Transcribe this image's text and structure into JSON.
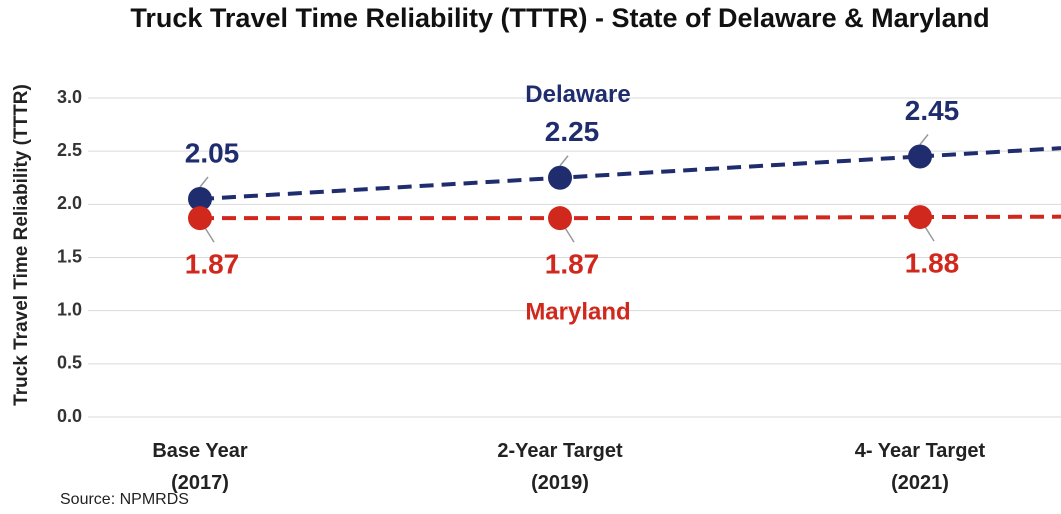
{
  "chart_data": {
    "type": "line",
    "title": "Truck Travel Time Reliability (TTTR) - State of Delaware & Maryland",
    "y_label": "Truck Travel Time Reliability (TTTR)",
    "source": "Source: NPMRDS",
    "categories": [
      "Base Year (2017)",
      "2-Year Target (2019)",
      "4- Year Target (2021)"
    ],
    "series": [
      {
        "name": "Delaware",
        "color": "#1f2d6e",
        "values": [
          2.05,
          2.25,
          2.45
        ],
        "label_position": "above"
      },
      {
        "name": "Maryland",
        "color": "#d0281c",
        "values": [
          1.87,
          1.87,
          1.88
        ],
        "label_position": "below"
      }
    ],
    "ylim": [
      0,
      3
    ],
    "yticks": [
      {
        "value": 0,
        "label": "0.0"
      },
      {
        "value": 0.5,
        "label": "0.5"
      },
      {
        "value": 1,
        "label": "1.0"
      },
      {
        "value": 1.5,
        "label": "1.5"
      },
      {
        "value": 2,
        "label": "2.0"
      },
      {
        "value": 2.5,
        "label": "2.5"
      },
      {
        "value": 3,
        "label": "3.0"
      }
    ],
    "grid": true
  }
}
